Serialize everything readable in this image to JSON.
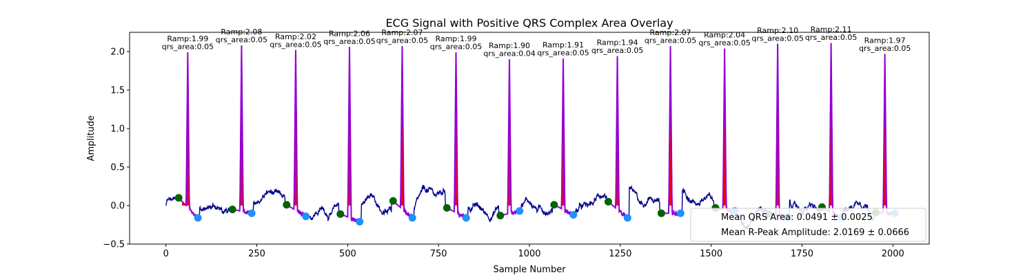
{
  "chart_data": {
    "type": "line",
    "title": "ECG Signal with Positive QRS Complex Area Overlay",
    "xlabel": "Sample Number",
    "ylabel": "Amplitude",
    "xlim": [
      -100,
      2100
    ],
    "ylim": [
      -0.5,
      2.25
    ],
    "xticks": [
      0,
      250,
      500,
      750,
      1000,
      1250,
      1500,
      1750,
      2000
    ],
    "yticks": [
      -0.5,
      0.0,
      0.5,
      1.0,
      1.5,
      2.0
    ],
    "xtick_labels": [
      "0",
      "250",
      "500",
      "750",
      "1000",
      "1250",
      "1500",
      "1750",
      "2000"
    ],
    "ytick_labels": [
      "−0.5",
      "0.0",
      "0.5",
      "1.0",
      "1.5",
      "2.0"
    ],
    "grid": false,
    "colors": {
      "signal": "#00008b",
      "qrs_segment": "#9400d3",
      "area_fill": "#ff0000",
      "q_onset": "#006400",
      "s_offset": "#1e90ff"
    },
    "beats": [
      {
        "r": 60,
        "ramp": 1.99,
        "label_ramp": "Ramp:1.99",
        "label_area": "qrs_area:0.05",
        "q": 35,
        "qv": 0.1,
        "s": 88,
        "sv": -0.16
      },
      {
        "r": 208,
        "ramp": 2.08,
        "label_ramp": "Ramp:2.08",
        "label_area": "qrs_area:0.05",
        "q": 183,
        "qv": -0.05,
        "s": 236,
        "sv": -0.1
      },
      {
        "r": 357,
        "ramp": 2.02,
        "label_ramp": "Ramp:2.02",
        "label_area": "qrs_area:0.05",
        "q": 332,
        "qv": 0.01,
        "s": 385,
        "sv": -0.14
      },
      {
        "r": 505,
        "ramp": 2.06,
        "label_ramp": "Ramp:2.06",
        "label_area": "qrs_area:0.05",
        "q": 480,
        "qv": -0.11,
        "s": 533,
        "sv": -0.21
      },
      {
        "r": 650,
        "ramp": 2.07,
        "label_ramp": "Ramp:2.07",
        "label_area": "qrs_area:0.05",
        "q": 625,
        "qv": 0.06,
        "s": 678,
        "sv": -0.16
      },
      {
        "r": 798,
        "ramp": 1.99,
        "label_ramp": "Ramp:1.99",
        "label_area": "qrs_area:0.05",
        "q": 773,
        "qv": -0.03,
        "s": 826,
        "sv": -0.16
      },
      {
        "r": 945,
        "ramp": 1.9,
        "label_ramp": "Ramp:1.90",
        "label_area": "qrs_area:0.04",
        "q": 920,
        "qv": -0.13,
        "s": 973,
        "sv": -0.07
      },
      {
        "r": 1093,
        "ramp": 1.91,
        "label_ramp": "Ramp:1.91",
        "label_area": "qrs_area:0.05",
        "q": 1068,
        "qv": 0.01,
        "s": 1121,
        "sv": -0.12
      },
      {
        "r": 1242,
        "ramp": 1.94,
        "label_ramp": "Ramp:1.94",
        "label_area": "qrs_area:0.05",
        "q": 1217,
        "qv": 0.05,
        "s": 1270,
        "sv": -0.16
      },
      {
        "r": 1388,
        "ramp": 2.07,
        "label_ramp": "Ramp:2.07",
        "label_area": "qrs_area:0.05",
        "q": 1363,
        "qv": -0.1,
        "s": 1416,
        "sv": -0.1
      },
      {
        "r": 1537,
        "ramp": 2.04,
        "label_ramp": "Ramp:2.04",
        "label_area": "qrs_area:0.05",
        "q": 1512,
        "qv": -0.03,
        "s": 1565,
        "sv": -0.07
      },
      {
        "r": 1683,
        "ramp": 2.1,
        "label_ramp": "Ramp:2.10",
        "label_area": "qrs_area:0.05",
        "q": 1658,
        "qv": -0.11,
        "s": 1711,
        "sv": -0.15
      },
      {
        "r": 1830,
        "ramp": 2.11,
        "label_ramp": "Ramp:2.11",
        "label_area": "qrs_area:0.05",
        "q": 1805,
        "qv": -0.02,
        "s": 1858,
        "sv": -0.16
      },
      {
        "r": 1978,
        "ramp": 1.97,
        "label_ramp": "Ramp:1.97",
        "label_area": "qrs_area:0.05",
        "q": 1953,
        "qv": -0.09,
        "s": 2006,
        "sv": -0.1
      }
    ],
    "legend": {
      "placement": "lower right",
      "entries": [
        "Mean QRS Area: 0.0491 ± 0.0025",
        "Mean R-Peak Amplitude: 2.0169 ± 0.0666"
      ]
    }
  }
}
